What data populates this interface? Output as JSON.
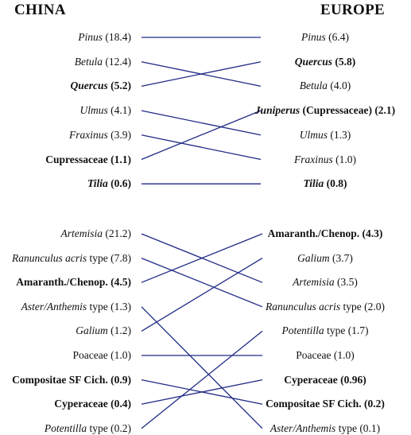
{
  "headers": {
    "left": "CHINA",
    "right": "EUROPE"
  },
  "line_color": "#1f2a85",
  "groups": [
    {
      "name": "trees",
      "left": [
        {
          "id": "pinus",
          "genus": "Pinus",
          "rest": " (18.4)",
          "bold": false
        },
        {
          "id": "betula",
          "genus": "Betula",
          "rest": " (12.4)",
          "bold": false
        },
        {
          "id": "quercus",
          "genus": "Quercus",
          "rest": " (5.2)",
          "bold": true
        },
        {
          "id": "ulmus",
          "genus": "Ulmus",
          "rest": " (4.1)",
          "bold": false
        },
        {
          "id": "fraxinus",
          "genus": "Fraxinus",
          "rest": " (3.9)",
          "bold": false
        },
        {
          "id": "cupressaceae",
          "genus": "",
          "rest": "Cupressaceae (1.1)",
          "bold": true
        },
        {
          "id": "tilia",
          "genus": "Tilia",
          "rest": " (0.6)",
          "bold": true
        }
      ],
      "right": [
        {
          "id": "pinus",
          "genus": "Pinus",
          "rest": " (6.4)",
          "bold": false
        },
        {
          "id": "quercus",
          "genus": "Quercus",
          "rest": " (5.8)",
          "bold": true
        },
        {
          "id": "betula",
          "genus": "Betula",
          "rest": " (4.0)",
          "bold": false
        },
        {
          "id": "cupressaceae",
          "genus": "Juniperus",
          "rest": " (Cupressaceae) (2.1)",
          "bold": true
        },
        {
          "id": "ulmus",
          "genus": "Ulmus",
          "rest": " (1.3)",
          "bold": false
        },
        {
          "id": "fraxinus",
          "genus": "Fraxinus",
          "rest": " (1.0)",
          "bold": false
        },
        {
          "id": "tilia",
          "genus": "Tilia",
          "rest": " (0.8)",
          "bold": true
        }
      ]
    },
    {
      "name": "herbs",
      "left": [
        {
          "id": "artemisia",
          "genus": "Artemisia",
          "rest": " (21.2)",
          "bold": false
        },
        {
          "id": "ranunculus",
          "genus": "Ranunculus acris",
          "rest": " type (7.8)",
          "bold": false
        },
        {
          "id": "amaranth",
          "genus": "",
          "rest": "Amaranth./Chenop. (4.5)",
          "bold": true
        },
        {
          "id": "aster",
          "genus": "Aster/Anthemis",
          "rest": " type (1.3)",
          "bold": false
        },
        {
          "id": "galium",
          "genus": "Galium",
          "rest": " (1.2)",
          "bold": false
        },
        {
          "id": "poaceae",
          "genus": "",
          "rest": "Poaceae (1.0)",
          "bold": false
        },
        {
          "id": "compositae",
          "genus": "",
          "rest": "Compositae SF Cich. (0.9)",
          "bold": true
        },
        {
          "id": "cyperaceae",
          "genus": "",
          "rest": "Cyperaceae (0.4)",
          "bold": true
        },
        {
          "id": "potentilla",
          "genus": "Potentilla",
          "rest": " type (0.2)",
          "bold": false
        }
      ],
      "right": [
        {
          "id": "amaranth",
          "genus": "",
          "rest": "Amaranth./Chenop. (4.3)",
          "bold": true
        },
        {
          "id": "galium",
          "genus": "Galium",
          "rest": " (3.7)",
          "bold": false
        },
        {
          "id": "artemisia",
          "genus": "Artemisia",
          "rest": " (3.5)",
          "bold": false
        },
        {
          "id": "ranunculus",
          "genus": "Ranunculus acris",
          "rest": " type (2.0)",
          "bold": false
        },
        {
          "id": "potentilla",
          "genus": "Potentilla",
          "rest": " type (1.7)",
          "bold": false
        },
        {
          "id": "poaceae",
          "genus": "",
          "rest": "Poaceae (1.0)",
          "bold": false
        },
        {
          "id": "cyperaceae",
          "genus": "",
          "rest": "Cyperaceae (0.96)",
          "bold": true
        },
        {
          "id": "compositae",
          "genus": "",
          "rest": "Compositae SF Cich. (0.2)",
          "bold": true
        },
        {
          "id": "aster",
          "genus": "Aster/Anthemis",
          "rest": " type (0.1)",
          "bold": false
        }
      ]
    }
  ]
}
